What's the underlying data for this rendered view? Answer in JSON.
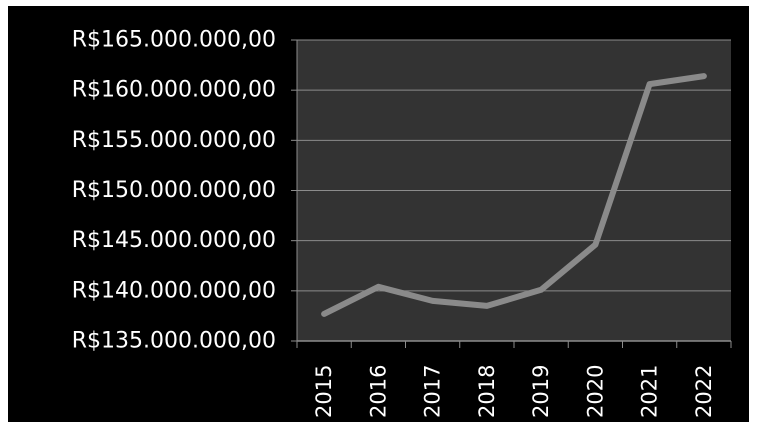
{
  "chart_data": {
    "type": "line",
    "title": "",
    "xlabel": "",
    "ylabel": "",
    "categories": [
      "2015",
      "2016",
      "2017",
      "2018",
      "2019",
      "2020",
      "2021",
      "2022"
    ],
    "series": [
      {
        "values": [
          137700000,
          140400000,
          139000000,
          138500000,
          140100000,
          144600000,
          160600000,
          161400000
        ]
      }
    ],
    "ylim": [
      135000000,
      165000000
    ],
    "y_ticks": [
      135000000,
      140000000,
      145000000,
      150000000,
      155000000,
      160000000,
      165000000
    ],
    "y_tick_labels": [
      "R$135.000.000,00",
      "R$140.000.000,00",
      "R$145.000.000,00",
      "R$150.000.000,00",
      "R$155.000.000,00",
      "R$160.000.000,00",
      "R$165.000.000,00"
    ],
    "grid": true,
    "legend": "none",
    "colors": {
      "background": "#000000",
      "plot_area": "#333333",
      "gridline": "#8c8c8c",
      "line": "#8a8a8a",
      "text": "#ffffff"
    }
  }
}
